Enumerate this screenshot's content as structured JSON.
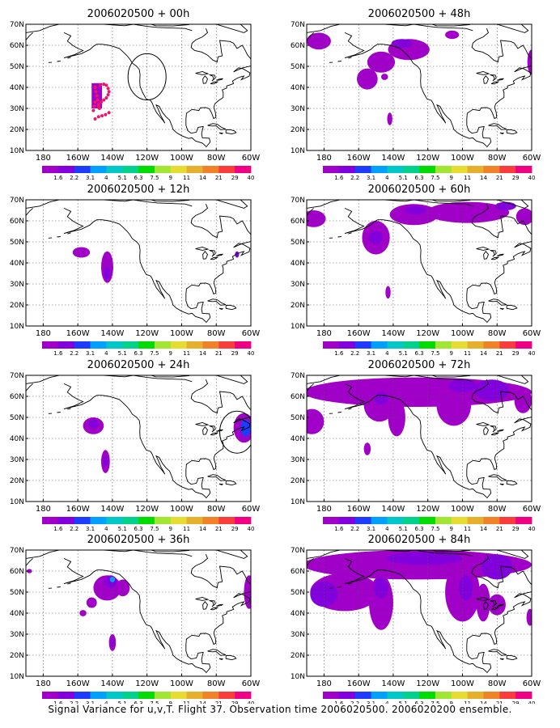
{
  "footer_text": "Signal Variance for u,v,T. Flight 37. Observation time 2006020500. 2006020200 ensemble.",
  "longitude_ticks": [
    "180",
    "160W",
    "140W",
    "120W",
    "100W",
    "80W",
    "60W"
  ],
  "latitude_ticks": [
    "10N",
    "20N",
    "30N",
    "40N",
    "50N",
    "60N",
    "70N"
  ],
  "colorbar": {
    "labels": [
      "1.6",
      "2.2",
      "3.1",
      "4",
      "5.1",
      "6.3",
      "7.5",
      "9",
      "11",
      "14",
      "21",
      "29",
      "40"
    ],
    "colors": [
      "#a000c8",
      "#8200dc",
      "#1e3cff",
      "#00a0ff",
      "#00c8c8",
      "#00d28c",
      "#00dc00",
      "#a0e632",
      "#e6dc32",
      "#e6af2d",
      "#f08228",
      "#fa3c3c",
      "#f00082"
    ]
  },
  "map_extent": {
    "lon_west": -190,
    "lon_east": -60,
    "lat_south": 10,
    "lat_north": 70
  },
  "panels": [
    {
      "id": "p00",
      "title": "2006020500 + 00h",
      "blobs": [],
      "observation_marks": [
        [
          -150,
          40
        ],
        [
          -149.5,
          38
        ],
        [
          -149,
          36
        ],
        [
          -148.5,
          34
        ],
        [
          -148,
          32
        ],
        [
          -147.5,
          30
        ],
        [
          -151,
          29
        ],
        [
          -150.5,
          31
        ],
        [
          -150,
          33
        ],
        [
          -147,
          41
        ],
        [
          -145,
          41.5
        ],
        [
          -143.5,
          41
        ],
        [
          -142.5,
          39.5
        ],
        [
          -142,
          38
        ],
        [
          -142.5,
          36.5
        ],
        [
          -143.5,
          35
        ],
        [
          -145,
          34
        ],
        [
          -146.5,
          33
        ],
        [
          -148,
          31
        ],
        [
          -148,
          26
        ],
        [
          -146,
          26.5
        ],
        [
          -144,
          27
        ],
        [
          -142,
          28
        ],
        [
          -150,
          25
        ]
      ],
      "box": {
        "lon": [
          -152,
          -146
        ],
        "lat": [
          30,
          42
        ]
      },
      "target_circle": {
        "lon": -120,
        "lat": 45,
        "r_deg": 11
      }
    },
    {
      "id": "p12",
      "title": "2006020500 + 12h",
      "blobs": [
        {
          "lon": -158,
          "lat": 45,
          "rx": 5,
          "ry": 2.5,
          "level": 0
        },
        {
          "lon": -143,
          "lat": 38,
          "rx": 3.5,
          "ry": 7.5,
          "level": 0
        },
        {
          "lon": -143,
          "lat": 35,
          "rx": 2,
          "ry": 3,
          "level": 1
        },
        {
          "lon": -68,
          "lat": 44,
          "rx": 1.2,
          "ry": 1.5,
          "level": 1
        }
      ],
      "observation_marks": [],
      "target_circle": null
    },
    {
      "id": "p24",
      "title": "2006020500 + 24h",
      "blobs": [
        {
          "lon": -151,
          "lat": 46,
          "rx": 6,
          "ry": 4,
          "level": 0
        },
        {
          "lon": -151,
          "lat": 47,
          "rx": 3,
          "ry": 2,
          "level": 1
        },
        {
          "lon": -144,
          "lat": 29,
          "rx": 2.5,
          "ry": 5.5,
          "level": 0
        },
        {
          "lon": -144,
          "lat": 29,
          "rx": 1.3,
          "ry": 2.5,
          "level": 1
        },
        {
          "lon": -64,
          "lat": 45,
          "rx": 6,
          "ry": 7,
          "level": 0
        },
        {
          "lon": -63,
          "lat": 45,
          "rx": 3,
          "ry": 4,
          "level": 2
        }
      ],
      "observation_marks": [],
      "target_circle": {
        "lon": -68,
        "lat": 43,
        "r_deg": 10
      }
    },
    {
      "id": "p36",
      "title": "2006020500 + 36h",
      "blobs": [
        {
          "lon": -143,
          "lat": 52,
          "rx": 8,
          "ry": 6,
          "level": 0
        },
        {
          "lon": -141,
          "lat": 55,
          "rx": 3.5,
          "ry": 3,
          "level": 1
        },
        {
          "lon": -140,
          "lat": 56,
          "rx": 1.5,
          "ry": 1.3,
          "level": 3
        },
        {
          "lon": -152,
          "lat": 45,
          "rx": 3,
          "ry": 2.5,
          "level": 0
        },
        {
          "lon": -157,
          "lat": 40,
          "rx": 2,
          "ry": 1.5,
          "level": 0
        },
        {
          "lon": -134,
          "lat": 52,
          "rx": 4,
          "ry": 4,
          "level": 0
        },
        {
          "lon": -140,
          "lat": 26,
          "rx": 2,
          "ry": 4,
          "level": 0
        },
        {
          "lon": -140,
          "lat": 26,
          "rx": 1,
          "ry": 2,
          "level": 1
        },
        {
          "lon": -61,
          "lat": 50,
          "rx": 3,
          "ry": 8,
          "level": 0
        },
        {
          "lon": -188,
          "lat": 60,
          "rx": 1.5,
          "ry": 1,
          "level": 0
        }
      ],
      "observation_marks": [],
      "target_circle": null
    },
    {
      "id": "p48",
      "title": "2006020500 + 48h",
      "blobs": [
        {
          "lon": -131,
          "lat": 58,
          "rx": 12,
          "ry": 5,
          "level": 0
        },
        {
          "lon": -135,
          "lat": 61,
          "rx": 6,
          "ry": 2,
          "level": 1
        },
        {
          "lon": -147,
          "lat": 52,
          "rx": 8,
          "ry": 5,
          "level": 0
        },
        {
          "lon": -155,
          "lat": 44,
          "rx": 6,
          "ry": 5,
          "level": 0
        },
        {
          "lon": -183,
          "lat": 62,
          "rx": 7,
          "ry": 4,
          "level": 0
        },
        {
          "lon": -145,
          "lat": 45,
          "rx": 2,
          "ry": 1.5,
          "level": 0
        },
        {
          "lon": -142,
          "lat": 25,
          "rx": 1.5,
          "ry": 3,
          "level": 0
        },
        {
          "lon": -106,
          "lat": 65,
          "rx": 4,
          "ry": 2,
          "level": 0
        },
        {
          "lon": -60,
          "lat": 52,
          "rx": 2.5,
          "ry": 6,
          "level": 0
        }
      ],
      "observation_marks": [],
      "target_circle": null
    },
    {
      "id": "p60",
      "title": "2006020500 + 60h",
      "blobs": [
        {
          "lon": -186,
          "lat": 61,
          "rx": 7,
          "ry": 4,
          "level": 0
        },
        {
          "lon": -150,
          "lat": 52,
          "rx": 8,
          "ry": 8,
          "level": 0
        },
        {
          "lon": -150,
          "lat": 52,
          "rx": 4,
          "ry": 3,
          "level": 1
        },
        {
          "lon": -128,
          "lat": 63,
          "rx": 14,
          "ry": 5,
          "level": 0
        },
        {
          "lon": -127,
          "lat": 65,
          "rx": 6,
          "ry": 2,
          "level": 1
        },
        {
          "lon": -97,
          "lat": 64,
          "rx": 24,
          "ry": 5,
          "level": 0
        },
        {
          "lon": -75,
          "lat": 67,
          "rx": 6,
          "ry": 2,
          "level": 1
        },
        {
          "lon": -64,
          "lat": 62,
          "rx": 5,
          "ry": 4,
          "level": 0
        },
        {
          "lon": -143,
          "lat": 26,
          "rx": 1.5,
          "ry": 3,
          "level": 0
        }
      ],
      "observation_marks": [],
      "target_circle": null
    },
    {
      "id": "p72",
      "title": "2006020500 + 72h",
      "blobs": [
        {
          "lon": -126,
          "lat": 62,
          "rx": 66,
          "ry": 7,
          "level": 0
        },
        {
          "lon": -148,
          "lat": 56,
          "rx": 9,
          "ry": 8,
          "level": 0
        },
        {
          "lon": -147,
          "lat": 59,
          "rx": 4,
          "ry": 3,
          "level": 1
        },
        {
          "lon": -138,
          "lat": 50,
          "rx": 5,
          "ry": 9,
          "level": 0
        },
        {
          "lon": -105,
          "lat": 56,
          "rx": 10,
          "ry": 10,
          "level": 0
        },
        {
          "lon": -100,
          "lat": 65,
          "rx": 8,
          "ry": 3,
          "level": 1
        },
        {
          "lon": -83,
          "lat": 63,
          "rx": 10,
          "ry": 5,
          "level": 1
        },
        {
          "lon": -187,
          "lat": 48,
          "rx": 7,
          "ry": 6,
          "level": 0
        },
        {
          "lon": -155,
          "lat": 35,
          "rx": 2,
          "ry": 3,
          "level": 0
        },
        {
          "lon": -65,
          "lat": 58,
          "rx": 5,
          "ry": 6,
          "level": 0
        }
      ],
      "observation_marks": [],
      "target_circle": null
    },
    {
      "id": "p84",
      "title": "2006020500 + 84h",
      "blobs": [
        {
          "lon": -126,
          "lat": 63,
          "rx": 66,
          "ry": 7,
          "level": 0
        },
        {
          "lon": -168,
          "lat": 50,
          "rx": 20,
          "ry": 9,
          "level": 0
        },
        {
          "lon": -180,
          "lat": 49,
          "rx": 8,
          "ry": 6,
          "level": 1
        },
        {
          "lon": -147,
          "lat": 45,
          "rx": 7,
          "ry": 13,
          "level": 0
        },
        {
          "lon": -147,
          "lat": 52,
          "rx": 4,
          "ry": 5,
          "level": 1
        },
        {
          "lon": -100,
          "lat": 50,
          "rx": 10,
          "ry": 14,
          "level": 0
        },
        {
          "lon": -98,
          "lat": 52,
          "rx": 4,
          "ry": 6,
          "level": 1
        },
        {
          "lon": -88,
          "lat": 45,
          "rx": 4,
          "ry": 9,
          "level": 0
        },
        {
          "lon": -122,
          "lat": 66,
          "rx": 22,
          "ry": 3,
          "level": 1
        },
        {
          "lon": -80,
          "lat": 62,
          "rx": 9,
          "ry": 6,
          "level": 1
        },
        {
          "lon": -61,
          "lat": 38,
          "rx": 2,
          "ry": 4,
          "level": 0
        },
        {
          "lon": -80,
          "lat": 44,
          "rx": 5,
          "ry": 5,
          "level": 0
        }
      ],
      "observation_marks": [],
      "target_circle": null
    }
  ]
}
